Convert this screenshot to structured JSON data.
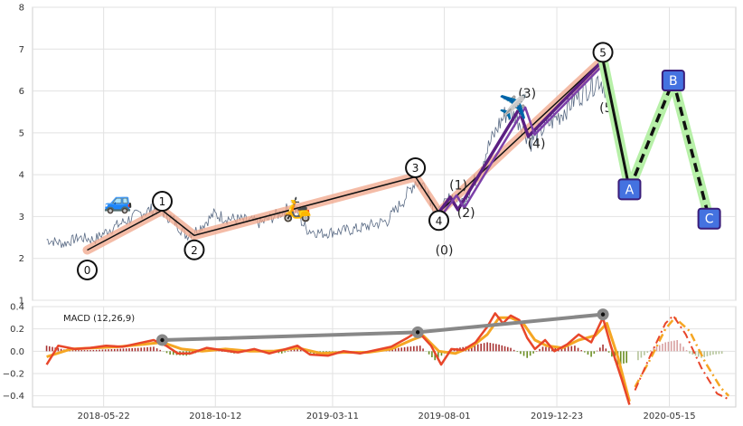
{
  "chart_data": [
    {
      "type": "line",
      "panel": "price-elliott-wave",
      "ylim": [
        1,
        8
      ],
      "y_ticks": [
        "1",
        "2",
        "3",
        "4",
        "5",
        "6",
        "7",
        "8"
      ],
      "grid": true,
      "price_series": {
        "color": "#5a6b85",
        "points": [
          [
            "2018-03-10",
            2.45
          ],
          [
            "2018-04-01",
            2.35
          ],
          [
            "2018-04-20",
            2.5
          ],
          [
            "2018-05-10",
            2.45
          ],
          [
            "2018-05-30",
            2.7
          ],
          [
            "2018-06-20",
            2.9
          ],
          [
            "2018-07-10",
            3.1
          ],
          [
            "2018-08-01",
            3.2
          ],
          [
            "2018-08-20",
            2.9
          ],
          [
            "2018-09-05",
            2.55
          ],
          [
            "2018-09-20",
            2.7
          ],
          [
            "2018-10-10",
            3.05
          ],
          [
            "2018-10-30",
            2.95
          ],
          [
            "2018-11-20",
            2.9
          ],
          [
            "2018-12-10",
            2.85
          ],
          [
            "2019-01-05",
            3.1
          ],
          [
            "2019-01-20",
            3.25
          ],
          [
            "2019-02-05",
            2.7
          ],
          [
            "2019-02-25",
            2.6
          ],
          [
            "2019-03-20",
            2.65
          ],
          [
            "2019-04-10",
            2.7
          ],
          [
            "2019-05-01",
            2.8
          ],
          [
            "2019-05-20",
            2.9
          ],
          [
            "2019-06-10",
            3.4
          ],
          [
            "2019-06-25",
            3.85
          ],
          [
            "2019-07-10",
            3.7
          ],
          [
            "2019-07-22",
            3.0
          ],
          [
            "2019-08-10",
            3.5
          ],
          [
            "2019-08-25",
            3.35
          ],
          [
            "2019-09-10",
            3.9
          ],
          [
            "2019-09-25",
            4.6
          ],
          [
            "2019-10-10",
            5.2
          ],
          [
            "2019-10-20",
            5.5
          ],
          [
            "2019-11-05",
            5.3
          ],
          [
            "2019-11-20",
            4.8
          ],
          [
            "2019-12-05",
            5.1
          ],
          [
            "2019-12-25",
            5.4
          ],
          [
            "2020-01-15",
            5.8
          ],
          [
            "2020-02-01",
            6.1
          ],
          [
            "2020-02-15",
            6.3
          ],
          [
            "2020-03-01",
            6.0
          ],
          [
            "2020-03-15",
            4.8
          ],
          [
            "2020-03-25",
            4.0
          ]
        ]
      },
      "waves": [
        {
          "label": "0",
          "date": "2018-05-01",
          "y": 2.2,
          "label_pos": "below"
        },
        {
          "label": "1",
          "date": "2018-08-05",
          "y": 3.15,
          "label_pos": "above"
        },
        {
          "label": "2",
          "date": "2018-09-15",
          "y": 2.55,
          "label_pos": "below"
        },
        {
          "label": "3",
          "date": "2019-06-25",
          "y": 3.95,
          "label_pos": "above"
        },
        {
          "label": "4",
          "date": "2019-07-25",
          "y": 3.1,
          "label_pos": "below"
        },
        {
          "label": "5",
          "date": "2020-02-20",
          "y": 6.75,
          "label_pos": "above"
        }
      ],
      "subwaves": [
        {
          "label": "(0)",
          "date": "2019-07-25",
          "y": 3.1,
          "text_y": 2.2
        },
        {
          "label": "(1)",
          "date": "2019-08-12",
          "y": 3.55,
          "text_y": 3.75
        },
        {
          "label": "(2)",
          "date": "2019-08-22",
          "y": 3.25,
          "text_y": 3.1
        },
        {
          "label": "(3)",
          "date": "2019-11-08",
          "y": 5.65,
          "text_y": 5.95
        },
        {
          "label": "(4)",
          "date": "2019-11-20",
          "y": 5.0,
          "text_y": 4.75
        },
        {
          "label": "(5)",
          "date": "2020-02-20",
          "y": 6.75,
          "text_y": 5.6
        }
      ],
      "correction": [
        {
          "label": "A",
          "date": "2020-03-25",
          "y": 3.65
        },
        {
          "label": "B",
          "date": "2020-05-20",
          "y": 6.25
        },
        {
          "label": "C",
          "date": "2020-07-05",
          "y": 2.95
        }
      ],
      "emoji": [
        {
          "char": "🚙",
          "date": "2018-06-10",
          "y": 3.4
        },
        {
          "char": "🛵",
          "date": "2019-01-25",
          "y": 3.2
        },
        {
          "char": "✈️",
          "date": "2019-10-28",
          "y": 5.65
        }
      ],
      "colors": {
        "wave": "#111111",
        "wave_band": "#f0a58a",
        "subwave": "#5b1f82",
        "correction_band": "#b7f0a8",
        "node_fill": "#4472e0",
        "node_edge": "#3a1d7a"
      }
    },
    {
      "type": "line",
      "panel": "macd",
      "title": "MACD (12,26,9)",
      "ylim": [
        -0.5,
        0.4
      ],
      "y_ticks": [
        "−0.4",
        "−0.2",
        "0.0",
        "0.2",
        "0.4"
      ],
      "x_ticks": [
        "2018-05-22",
        "2018-10-12",
        "2019-03-11",
        "2019-08-01",
        "2019-12-23",
        "2020-05-15"
      ],
      "macd": [
        [
          "2018-03-10",
          -0.12
        ],
        [
          "2018-03-25",
          0.05
        ],
        [
          "2018-04-15",
          0.02
        ],
        [
          "2018-05-05",
          0.03
        ],
        [
          "2018-05-25",
          0.05
        ],
        [
          "2018-06-15",
          0.04
        ],
        [
          "2018-07-05",
          0.07
        ],
        [
          "2018-07-25",
          0.1
        ],
        [
          "2018-08-10",
          0.05
        ],
        [
          "2018-08-25",
          -0.02
        ],
        [
          "2018-09-10",
          -0.02
        ],
        [
          "2018-10-01",
          0.03
        ],
        [
          "2018-10-20",
          0.01
        ],
        [
          "2018-11-10",
          -0.01
        ],
        [
          "2018-12-01",
          0.02
        ],
        [
          "2018-12-20",
          -0.02
        ],
        [
          "2019-01-10",
          0.02
        ],
        [
          "2019-01-25",
          0.05
        ],
        [
          "2019-02-10",
          -0.03
        ],
        [
          "2019-03-05",
          -0.04
        ],
        [
          "2019-03-25",
          0.0
        ],
        [
          "2019-04-15",
          -0.02
        ],
        [
          "2019-05-05",
          0.01
        ],
        [
          "2019-05-25",
          0.04
        ],
        [
          "2019-06-15",
          0.12
        ],
        [
          "2019-06-28",
          0.18
        ],
        [
          "2019-07-15",
          0.05
        ],
        [
          "2019-07-28",
          -0.12
        ],
        [
          "2019-08-10",
          0.02
        ],
        [
          "2019-08-25",
          0.01
        ],
        [
          "2019-09-10",
          0.08
        ],
        [
          "2019-09-25",
          0.22
        ],
        [
          "2019-10-05",
          0.34
        ],
        [
          "2019-10-15",
          0.25
        ],
        [
          "2019-10-25",
          0.32
        ],
        [
          "2019-11-05",
          0.28
        ],
        [
          "2019-11-15",
          0.12
        ],
        [
          "2019-11-25",
          0.02
        ],
        [
          "2019-12-08",
          0.1
        ],
        [
          "2019-12-20",
          0.0
        ],
        [
          "2020-01-05",
          0.06
        ],
        [
          "2020-01-20",
          0.15
        ],
        [
          "2020-02-05",
          0.08
        ],
        [
          "2020-02-20",
          0.3
        ],
        [
          "2020-03-01",
          0.05
        ],
        [
          "2020-03-15",
          -0.25
        ],
        [
          "2020-03-25",
          -0.48
        ]
      ],
      "signal": [
        [
          "2018-03-10",
          -0.05
        ],
        [
          "2018-04-10",
          0.02
        ],
        [
          "2018-05-10",
          0.03
        ],
        [
          "2018-06-10",
          0.04
        ],
        [
          "2018-07-10",
          0.06
        ],
        [
          "2018-08-05",
          0.08
        ],
        [
          "2018-08-30",
          0.02
        ],
        [
          "2018-09-25",
          0.0
        ],
        [
          "2018-10-25",
          0.02
        ],
        [
          "2018-11-25",
          0.0
        ],
        [
          "2018-12-25",
          0.0
        ],
        [
          "2019-01-25",
          0.03
        ],
        [
          "2019-02-25",
          -0.02
        ],
        [
          "2019-03-25",
          -0.01
        ],
        [
          "2019-04-25",
          -0.01
        ],
        [
          "2019-05-25",
          0.02
        ],
        [
          "2019-06-20",
          0.1
        ],
        [
          "2019-07-05",
          0.14
        ],
        [
          "2019-07-25",
          0.0
        ],
        [
          "2019-08-15",
          -0.02
        ],
        [
          "2019-09-05",
          0.04
        ],
        [
          "2019-09-25",
          0.15
        ],
        [
          "2019-10-10",
          0.3
        ],
        [
          "2019-10-25",
          0.3
        ],
        [
          "2019-11-10",
          0.25
        ],
        [
          "2019-11-25",
          0.1
        ],
        [
          "2019-12-10",
          0.05
        ],
        [
          "2019-12-30",
          0.03
        ],
        [
          "2020-01-20",
          0.1
        ],
        [
          "2020-02-10",
          0.14
        ],
        [
          "2020-02-25",
          0.25
        ],
        [
          "2020-03-10",
          -0.05
        ],
        [
          "2020-03-25",
          -0.45
        ]
      ],
      "histogram": [
        [
          "2018-03-10",
          0.05
        ],
        [
          "2018-04-05",
          0.01
        ],
        [
          "2018-05-05",
          0.01
        ],
        [
          "2018-06-05",
          0.02
        ],
        [
          "2018-07-05",
          0.03
        ],
        [
          "2018-07-25",
          0.04
        ],
        [
          "2018-08-15",
          -0.03
        ],
        [
          "2018-09-05",
          -0.04
        ],
        [
          "2018-10-05",
          0.02
        ],
        [
          "2018-11-05",
          -0.02
        ],
        [
          "2018-12-05",
          0.01
        ],
        [
          "2019-01-05",
          -0.02
        ],
        [
          "2019-01-25",
          0.03
        ],
        [
          "2019-02-15",
          -0.03
        ],
        [
          "2019-03-15",
          -0.02
        ],
        [
          "2019-04-15",
          -0.02
        ],
        [
          "2019-05-15",
          0.01
        ],
        [
          "2019-06-15",
          0.04
        ],
        [
          "2019-07-01",
          0.05
        ],
        [
          "2019-07-20",
          -0.08
        ],
        [
          "2019-08-10",
          0.02
        ],
        [
          "2019-09-05",
          0.05
        ],
        [
          "2019-09-25",
          0.08
        ],
        [
          "2019-10-10",
          0.06
        ],
        [
          "2019-10-25",
          0.03
        ],
        [
          "2019-11-15",
          -0.06
        ],
        [
          "2019-12-05",
          0.04
        ],
        [
          "2019-12-25",
          0.03
        ],
        [
          "2020-01-15",
          0.05
        ],
        [
          "2020-02-05",
          -0.05
        ],
        [
          "2020-02-20",
          0.06
        ],
        [
          "2020-03-10",
          -0.12
        ],
        [
          "2020-03-25",
          -0.1
        ]
      ],
      "forecast": [
        [
          "2020-04-01",
          -0.35
        ],
        [
          "2020-04-20",
          -0.05
        ],
        [
          "2020-05-10",
          0.25
        ],
        [
          "2020-05-20",
          0.32
        ],
        [
          "2020-06-05",
          0.15
        ],
        [
          "2020-06-25",
          -0.15
        ],
        [
          "2020-07-15",
          -0.38
        ],
        [
          "2020-07-30",
          -0.43
        ]
      ],
      "forecast_signal": [
        [
          "2020-04-01",
          -0.32
        ],
        [
          "2020-04-20",
          -0.08
        ],
        [
          "2020-05-10",
          0.2
        ],
        [
          "2020-05-22",
          0.3
        ],
        [
          "2020-06-10",
          0.18
        ],
        [
          "2020-06-30",
          -0.1
        ],
        [
          "2020-07-20",
          -0.33
        ],
        [
          "2020-07-30",
          -0.4
        ]
      ],
      "forecast_histogram": [
        [
          "2020-04-05",
          -0.08
        ],
        [
          "2020-04-25",
          0.03
        ],
        [
          "2020-05-10",
          0.08
        ],
        [
          "2020-05-25",
          0.1
        ],
        [
          "2020-06-10",
          -0.02
        ],
        [
          "2020-06-25",
          -0.06
        ],
        [
          "2020-07-10",
          -0.03
        ],
        [
          "2020-07-25",
          -0.02
        ]
      ],
      "divergence": [
        {
          "date": "2018-08-05",
          "y": 0.1
        },
        {
          "date": "2019-06-28",
          "y": 0.17
        },
        {
          "date": "2020-02-20",
          "y": 0.33
        }
      ],
      "colors": {
        "macd": "#e8462a",
        "signal": "#f5a623",
        "hist_up": "#a83232",
        "hist_down": "#6b8e23",
        "forecast_hist": "#d8a0a0",
        "divergence": "#888888"
      }
    }
  ]
}
